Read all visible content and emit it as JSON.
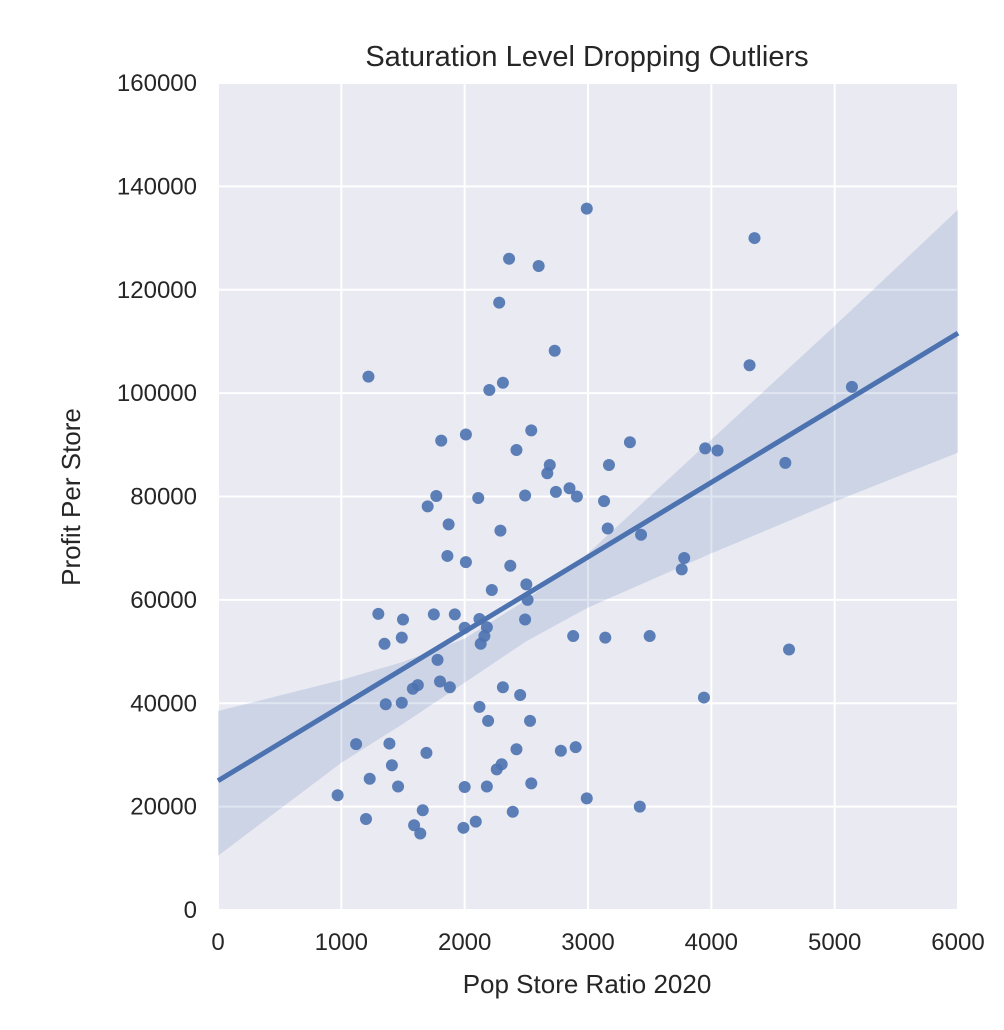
{
  "chart_data": {
    "type": "scatter",
    "title": "Saturation Level Dropping Outliers",
    "xlabel": "Pop Store Ratio 2020",
    "ylabel": "Profit Per Store",
    "xlim": [
      0,
      6000
    ],
    "ylim": [
      0,
      160000
    ],
    "xticks": [
      "0",
      "1000",
      "2000",
      "3000",
      "4000",
      "5000",
      "6000"
    ],
    "yticks": [
      "0",
      "20000",
      "40000",
      "60000",
      "80000",
      "100000",
      "120000",
      "140000",
      "160000"
    ],
    "grid": true,
    "colors": {
      "background": "#eaeaf2",
      "grid": "#ffffff",
      "point": "#4c72b0",
      "line": "#4c72b0",
      "band": "#4c72b0"
    },
    "points": [
      {
        "x": 2990,
        "y": 135700
      },
      {
        "x": 4350,
        "y": 130000
      },
      {
        "x": 2360,
        "y": 126000
      },
      {
        "x": 2600,
        "y": 124600
      },
      {
        "x": 2280,
        "y": 117500
      },
      {
        "x": 2730,
        "y": 108200
      },
      {
        "x": 4310,
        "y": 105400
      },
      {
        "x": 1220,
        "y": 103200
      },
      {
        "x": 2310,
        "y": 102000
      },
      {
        "x": 2200,
        "y": 100600
      },
      {
        "x": 5140,
        "y": 101200
      },
      {
        "x": 2540,
        "y": 92800
      },
      {
        "x": 2010,
        "y": 92000
      },
      {
        "x": 1810,
        "y": 90800
      },
      {
        "x": 3340,
        "y": 90500
      },
      {
        "x": 2420,
        "y": 89000
      },
      {
        "x": 3950,
        "y": 89300
      },
      {
        "x": 4050,
        "y": 88900
      },
      {
        "x": 4600,
        "y": 86500
      },
      {
        "x": 2690,
        "y": 86100
      },
      {
        "x": 3170,
        "y": 86100
      },
      {
        "x": 2670,
        "y": 84500
      },
      {
        "x": 2850,
        "y": 81600
      },
      {
        "x": 2740,
        "y": 80900
      },
      {
        "x": 1770,
        "y": 80100
      },
      {
        "x": 2110,
        "y": 79700
      },
      {
        "x": 2490,
        "y": 80200
      },
      {
        "x": 2910,
        "y": 80000
      },
      {
        "x": 3130,
        "y": 79100
      },
      {
        "x": 1700,
        "y": 78100
      },
      {
        "x": 1870,
        "y": 74600
      },
      {
        "x": 2290,
        "y": 73400
      },
      {
        "x": 3160,
        "y": 73800
      },
      {
        "x": 3430,
        "y": 72600
      },
      {
        "x": 1860,
        "y": 68500
      },
      {
        "x": 2010,
        "y": 67300
      },
      {
        "x": 2370,
        "y": 66600
      },
      {
        "x": 3780,
        "y": 68100
      },
      {
        "x": 3760,
        "y": 65900
      },
      {
        "x": 2220,
        "y": 61900
      },
      {
        "x": 2500,
        "y": 63000
      },
      {
        "x": 2510,
        "y": 60000
      },
      {
        "x": 1300,
        "y": 57300
      },
      {
        "x": 1500,
        "y": 56200
      },
      {
        "x": 1750,
        "y": 57200
      },
      {
        "x": 1920,
        "y": 57200
      },
      {
        "x": 2120,
        "y": 56300
      },
      {
        "x": 2490,
        "y": 56200
      },
      {
        "x": 2000,
        "y": 54600
      },
      {
        "x": 2180,
        "y": 54700
      },
      {
        "x": 1490,
        "y": 52700
      },
      {
        "x": 2160,
        "y": 53000
      },
      {
        "x": 2880,
        "y": 53000
      },
      {
        "x": 3140,
        "y": 52700
      },
      {
        "x": 3500,
        "y": 53000
      },
      {
        "x": 1350,
        "y": 51500
      },
      {
        "x": 2130,
        "y": 51500
      },
      {
        "x": 4630,
        "y": 50400
      },
      {
        "x": 1780,
        "y": 48400
      },
      {
        "x": 1800,
        "y": 44200
      },
      {
        "x": 1620,
        "y": 43500
      },
      {
        "x": 1580,
        "y": 42800
      },
      {
        "x": 1880,
        "y": 43100
      },
      {
        "x": 2310,
        "y": 43100
      },
      {
        "x": 2450,
        "y": 41600
      },
      {
        "x": 3940,
        "y": 41100
      },
      {
        "x": 1360,
        "y": 39800
      },
      {
        "x": 1490,
        "y": 40100
      },
      {
        "x": 2120,
        "y": 39300
      },
      {
        "x": 2190,
        "y": 36600
      },
      {
        "x": 2530,
        "y": 36600
      },
      {
        "x": 1120,
        "y": 32100
      },
      {
        "x": 1390,
        "y": 32200
      },
      {
        "x": 2420,
        "y": 31100
      },
      {
        "x": 2780,
        "y": 30800
      },
      {
        "x": 2900,
        "y": 31500
      },
      {
        "x": 1690,
        "y": 30400
      },
      {
        "x": 1410,
        "y": 28000
      },
      {
        "x": 2300,
        "y": 28200
      },
      {
        "x": 2260,
        "y": 27200
      },
      {
        "x": 1230,
        "y": 25400
      },
      {
        "x": 1460,
        "y": 23900
      },
      {
        "x": 2000,
        "y": 23800
      },
      {
        "x": 2180,
        "y": 23900
      },
      {
        "x": 2540,
        "y": 24500
      },
      {
        "x": 970,
        "y": 22200
      },
      {
        "x": 2990,
        "y": 21600
      },
      {
        "x": 3420,
        "y": 20000
      },
      {
        "x": 1660,
        "y": 19300
      },
      {
        "x": 2390,
        "y": 19000
      },
      {
        "x": 1200,
        "y": 17600
      },
      {
        "x": 2090,
        "y": 17100
      },
      {
        "x": 1590,
        "y": 16400
      },
      {
        "x": 1990,
        "y": 15900
      },
      {
        "x": 1640,
        "y": 14800
      }
    ],
    "regression": {
      "x": [
        0,
        6000
      ],
      "y": [
        25000,
        111600
      ],
      "ci_upper": [
        {
          "x": 0,
          "y": 38500
        },
        {
          "x": 1000,
          "y": 44500
        },
        {
          "x": 1500,
          "y": 48000
        },
        {
          "x": 2000,
          "y": 52500
        },
        {
          "x": 2500,
          "y": 60000
        },
        {
          "x": 3000,
          "y": 69000
        },
        {
          "x": 4000,
          "y": 91000
        },
        {
          "x": 5000,
          "y": 113000
        },
        {
          "x": 6000,
          "y": 135500
        }
      ],
      "ci_lower": [
        {
          "x": 0,
          "y": 10500
        },
        {
          "x": 1000,
          "y": 28500
        },
        {
          "x": 1500,
          "y": 36000
        },
        {
          "x": 2000,
          "y": 44000
        },
        {
          "x": 2500,
          "y": 52000
        },
        {
          "x": 3000,
          "y": 58500
        },
        {
          "x": 4000,
          "y": 69000
        },
        {
          "x": 5000,
          "y": 79000
        },
        {
          "x": 6000,
          "y": 88500
        }
      ]
    }
  }
}
